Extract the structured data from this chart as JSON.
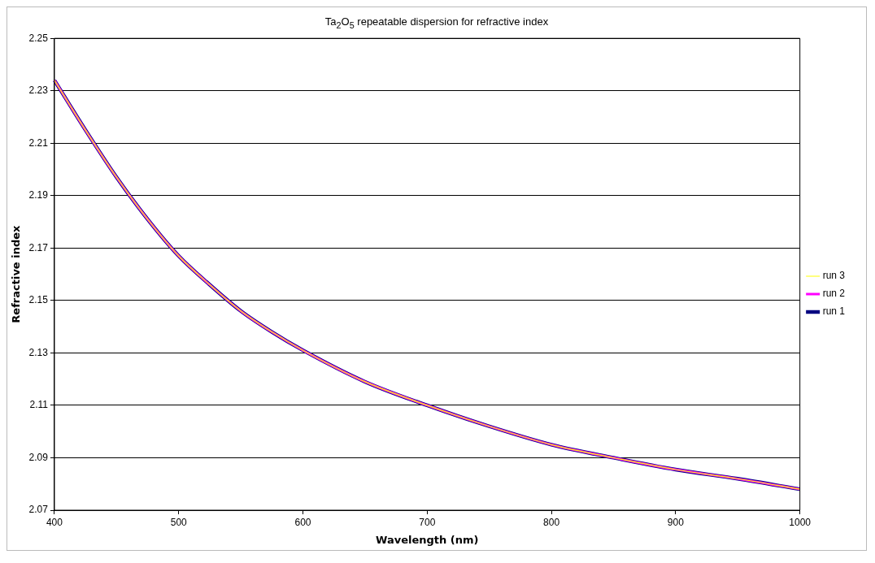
{
  "chart_data": {
    "type": "line",
    "title": "Ta$_{2}$O$_{5}$ repeatable dispersion for refractive index",
    "xlabel": "Wavelength (nm)",
    "ylabel": "Refractive index",
    "x": [
      400,
      425,
      450,
      475,
      500,
      525,
      550,
      575,
      600,
      650,
      700,
      750,
      800,
      850,
      900,
      950,
      1000
    ],
    "series": [
      {
        "name": "run 1",
        "color": "#000080",
        "values": [
          2.234,
          2.215,
          2.197,
          2.181,
          2.167,
          2.156,
          2.146,
          2.138,
          2.131,
          2.119,
          2.11,
          2.102,
          2.095,
          2.09,
          2.0855,
          2.082,
          2.078
        ]
      },
      {
        "name": "run 2",
        "color": "#ff00ff",
        "values": [
          2.234,
          2.215,
          2.197,
          2.181,
          2.167,
          2.156,
          2.146,
          2.138,
          2.131,
          2.119,
          2.11,
          2.102,
          2.095,
          2.09,
          2.0855,
          2.082,
          2.078
        ]
      },
      {
        "name": "run 3",
        "color": "#ffff00",
        "values": [
          2.234,
          2.215,
          2.197,
          2.181,
          2.167,
          2.156,
          2.146,
          2.138,
          2.131,
          2.119,
          2.11,
          2.102,
          2.095,
          2.09,
          2.0855,
          2.082,
          2.078
        ]
      }
    ],
    "xlim": [
      400,
      1000
    ],
    "xticks": [
      400,
      500,
      600,
      700,
      800,
      900,
      1000
    ],
    "ylim": [
      2.07,
      2.25
    ],
    "yticks": [
      2.07,
      2.09,
      2.11,
      2.13,
      2.15,
      2.17,
      2.19,
      2.21,
      2.23,
      2.25
    ],
    "grid": "y",
    "legend": "right",
    "marker": "none",
    "line_style": "solid"
  }
}
